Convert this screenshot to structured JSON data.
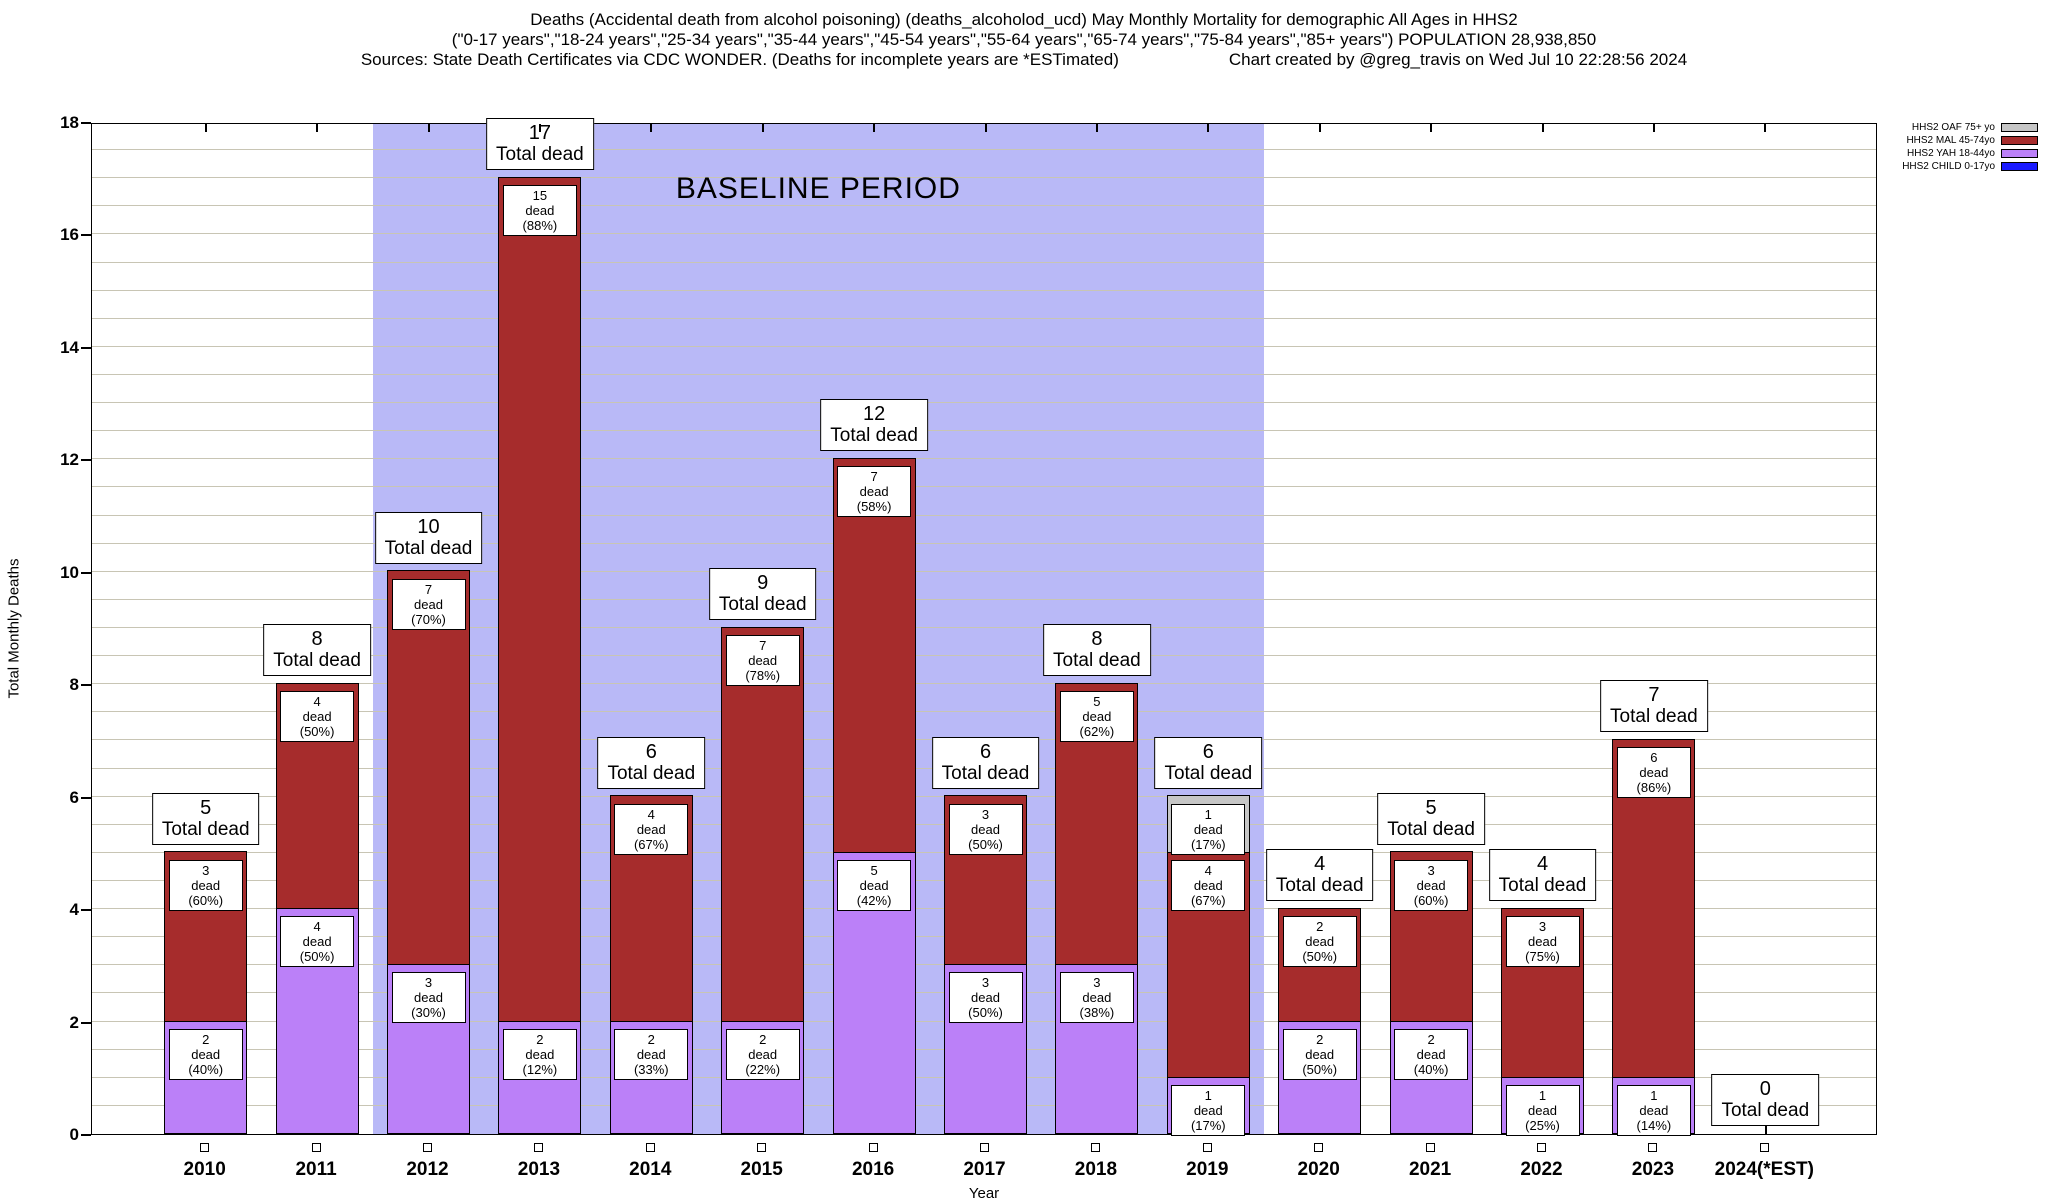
{
  "title": {
    "line1": "Deaths (Accidental death from alcohol poisoning) (deaths_alcoholod_ucd) May Monthly Mortality for demographic All Ages in HHS2",
    "line2": "(\"0-17 years\",\"18-24 years\",\"25-34 years\",\"35-44 years\",\"45-54 years\",\"55-64 years\",\"65-74 years\",\"75-84 years\",\"85+ years\") POPULATION 28,938,850",
    "line3_left": "Sources: State Death Certificates via CDC WONDER. (Deaths for incomplete years are *ESTimated)",
    "line3_right": "Chart created by @greg_travis on Wed Jul 10 22:28:56 2024"
  },
  "axes": {
    "ylabel": "Total Monthly Deaths",
    "xlabel": "Year",
    "ymin": 0,
    "ymax": 18,
    "ytick_step": 2,
    "grid_step": 0.5
  },
  "baseline": {
    "label": "BASELINE PERIOD",
    "start_category": "2012",
    "end_category": "2019"
  },
  "colors": {
    "OAF": "#c6c6c6",
    "MAL": "#a62c2c",
    "YAH": "#bb80f8",
    "CHILD": "#1a1aff",
    "baseline_band": "#b9b9f7",
    "grid": "#c8c5b4"
  },
  "legend": [
    {
      "label": "HHS2 OAF 75+ yo",
      "color_key": "OAF"
    },
    {
      "label": "HHS2 MAL 45-74yo",
      "color_key": "MAL"
    },
    {
      "label": "HHS2 YAH 18-44yo",
      "color_key": "YAH"
    },
    {
      "label": "HHS2 CHILD 0-17yo",
      "color_key": "CHILD"
    }
  ],
  "strings": {
    "total_dead_text": "Total dead"
  },
  "chart_data": {
    "type": "bar",
    "stacked": true,
    "title": "Deaths (Accidental death from alcohol poisoning) May Monthly Mortality, All Ages, HHS2",
    "xlabel": "Year",
    "ylabel": "Total Monthly Deaths",
    "ylim": [
      0,
      18
    ],
    "grid": true,
    "legend_position": "top-right",
    "categories": [
      "2010",
      "2011",
      "2012",
      "2013",
      "2014",
      "2015",
      "2016",
      "2017",
      "2018",
      "2019",
      "2020",
      "2021",
      "2022",
      "2023",
      "2024(*EST)"
    ],
    "baseline_period": [
      "2012",
      "2019"
    ],
    "bars": [
      {
        "category": "2010",
        "total": 5,
        "segments": [
          {
            "series": "YAH",
            "value": 2,
            "pct_label": "dead (40%)"
          },
          {
            "series": "MAL",
            "value": 3,
            "pct_label": "dead (60%)"
          }
        ]
      },
      {
        "category": "2011",
        "total": 8,
        "segments": [
          {
            "series": "YAH",
            "value": 4,
            "pct_label": "dead (50%)"
          },
          {
            "series": "MAL",
            "value": 4,
            "pct_label": "dead (50%)"
          }
        ]
      },
      {
        "category": "2012",
        "total": 10,
        "segments": [
          {
            "series": "YAH",
            "value": 3,
            "pct_label": "dead (30%)"
          },
          {
            "series": "MAL",
            "value": 7,
            "pct_label": "dead (70%)"
          }
        ]
      },
      {
        "category": "2013",
        "total": 17,
        "segments": [
          {
            "series": "YAH",
            "value": 2,
            "pct_label": "dead (12%)"
          },
          {
            "series": "MAL",
            "value": 15,
            "pct_label": "dead (88%)"
          }
        ]
      },
      {
        "category": "2014",
        "total": 6,
        "segments": [
          {
            "series": "YAH",
            "value": 2,
            "pct_label": "dead (33%)"
          },
          {
            "series": "MAL",
            "value": 4,
            "pct_label": "dead (67%)"
          }
        ]
      },
      {
        "category": "2015",
        "total": 9,
        "segments": [
          {
            "series": "YAH",
            "value": 2,
            "pct_label": "dead (22%)"
          },
          {
            "series": "MAL",
            "value": 7,
            "pct_label": "dead (78%)"
          }
        ]
      },
      {
        "category": "2016",
        "total": 12,
        "segments": [
          {
            "series": "YAH",
            "value": 5,
            "pct_label": "dead (42%)"
          },
          {
            "series": "MAL",
            "value": 7,
            "pct_label": "dead (58%)"
          }
        ]
      },
      {
        "category": "2017",
        "total": 6,
        "segments": [
          {
            "series": "YAH",
            "value": 3,
            "pct_label": "dead (50%)"
          },
          {
            "series": "MAL",
            "value": 3,
            "pct_label": "dead (50%)"
          }
        ]
      },
      {
        "category": "2018",
        "total": 8,
        "segments": [
          {
            "series": "YAH",
            "value": 3,
            "pct_label": "dead (38%)"
          },
          {
            "series": "MAL",
            "value": 5,
            "pct_label": "dead (62%)"
          }
        ]
      },
      {
        "category": "2019",
        "total": 6,
        "segments": [
          {
            "series": "YAH",
            "value": 1,
            "pct_label": "dead (17%)"
          },
          {
            "series": "MAL",
            "value": 4,
            "pct_label": "dead (67%)"
          },
          {
            "series": "OAF",
            "value": 1,
            "pct_label": "dead (17%)"
          }
        ]
      },
      {
        "category": "2020",
        "total": 4,
        "segments": [
          {
            "series": "YAH",
            "value": 2,
            "pct_label": "dead (50%)"
          },
          {
            "series": "MAL",
            "value": 2,
            "pct_label": "dead (50%)"
          }
        ]
      },
      {
        "category": "2021",
        "total": 5,
        "segments": [
          {
            "series": "YAH",
            "value": 2,
            "pct_label": "dead (40%)"
          },
          {
            "series": "MAL",
            "value": 3,
            "pct_label": "dead (60%)"
          }
        ]
      },
      {
        "category": "2022",
        "total": 4,
        "segments": [
          {
            "series": "YAH",
            "value": 1,
            "pct_label": "dead (25%)"
          },
          {
            "series": "MAL",
            "value": 3,
            "pct_label": "dead (75%)"
          }
        ]
      },
      {
        "category": "2023",
        "total": 7,
        "segments": [
          {
            "series": "YAH",
            "value": 1,
            "pct_label": "dead (14%)"
          },
          {
            "series": "MAL",
            "value": 6,
            "pct_label": "dead (86%)"
          }
        ]
      },
      {
        "category": "2024(*EST)",
        "total": 0,
        "segments": []
      }
    ]
  }
}
